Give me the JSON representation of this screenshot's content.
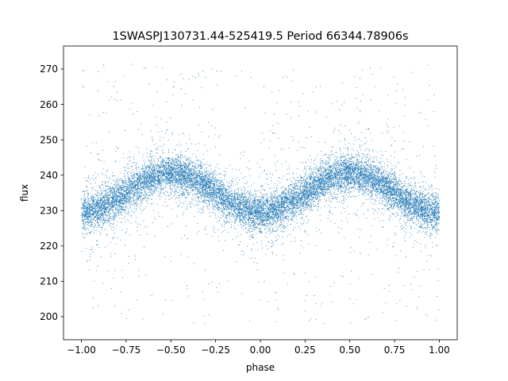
{
  "chart_data": {
    "type": "scatter",
    "title": "1SWASPJ130731.44-525419.5 Period 66344.78906s",
    "xlabel": "phase",
    "ylabel": "flux",
    "xlim": [
      -1.1,
      1.1
    ],
    "ylim": [
      193.5,
      276.5
    ],
    "xticks": [
      -1.0,
      -0.75,
      -0.5,
      -0.25,
      0.0,
      0.25,
      0.5,
      0.75,
      1.0
    ],
    "xtick_labels": [
      "−1.00",
      "−0.75",
      "−0.50",
      "−0.25",
      "0.00",
      "0.25",
      "0.50",
      "0.75",
      "1.00"
    ],
    "yticks": [
      200,
      210,
      220,
      230,
      240,
      250,
      260,
      270
    ],
    "ytick_labels": [
      "200",
      "210",
      "220",
      "230",
      "240",
      "250",
      "260",
      "270"
    ],
    "grid": false,
    "series": [
      {
        "color": "#1f77b4",
        "marker": "dot",
        "model": {
          "phase_min": -1.0,
          "phase_max": 1.0,
          "mean_flux": 235.0,
          "amplitude": 5.5,
          "cycle_length": 1.0,
          "minimum_phases": [
            -1.0,
            0.0,
            1.0
          ],
          "maximum_phases": [
            -0.5,
            0.5
          ],
          "core_scatter": 2.5,
          "outlier_range": [
            198,
            272
          ]
        },
        "approx_point_count": 14000
      }
    ]
  }
}
